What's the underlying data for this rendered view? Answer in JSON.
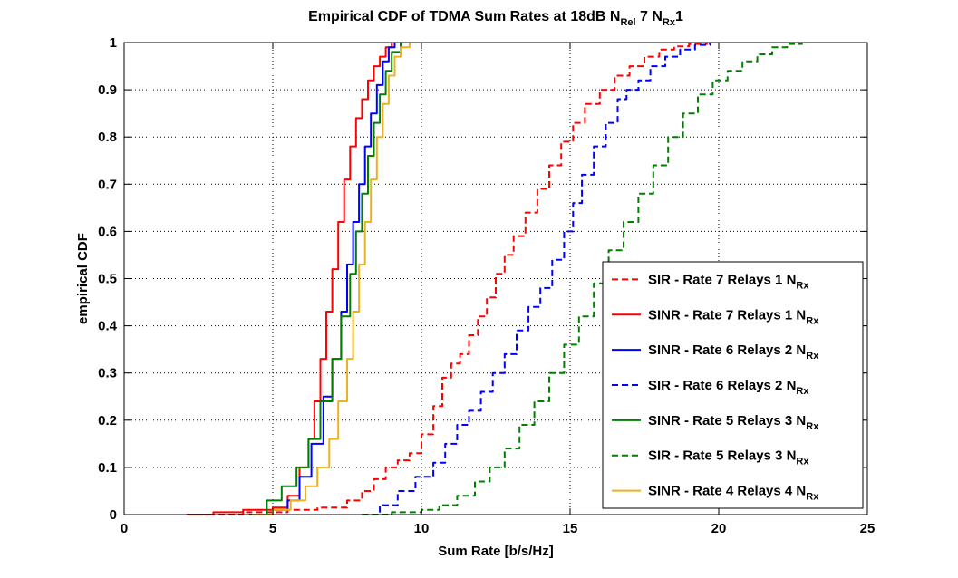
{
  "chart_data": {
    "type": "line",
    "title": {
      "main": "Empirical CDF of TDMA Sum Rates at 18dB N",
      "sub1": "Rel",
      "mid": " 7 N",
      "sub2": "Rx",
      "end": "1"
    },
    "xlabel": "Sum Rate [b/s/Hz]",
    "ylabel": "empirical CDF",
    "xlim": [
      0,
      25
    ],
    "ylim": [
      0,
      1
    ],
    "xticks": [
      "0",
      "5",
      "10",
      "15",
      "20",
      "25"
    ],
    "yticks": [
      "0",
      "0.1",
      "0.2",
      "0.3",
      "0.4",
      "0.5",
      "0.6",
      "0.7",
      "0.8",
      "0.9",
      "1"
    ],
    "grid": true,
    "legend_position": "lower-right",
    "series": [
      {
        "name": "SIR - Rate 7 Relays 1 N",
        "name_sub": "Rx",
        "color": "#ff0000",
        "dash": true,
        "x": [
          2.5,
          4.0,
          5.5,
          6.5,
          7.5,
          8.0,
          8.4,
          8.8,
          9.2,
          9.6,
          10.0,
          10.4,
          10.7,
          11.0,
          11.3,
          11.6,
          11.9,
          12.2,
          12.5,
          12.8,
          13.1,
          13.5,
          13.9,
          14.3,
          14.7,
          15.1,
          15.5,
          16.0,
          16.5,
          17.0,
          17.5,
          18.0,
          18.5,
          19.0,
          19.6
        ],
        "y": [
          0.0,
          0.005,
          0.01,
          0.015,
          0.03,
          0.05,
          0.075,
          0.1,
          0.115,
          0.13,
          0.17,
          0.23,
          0.29,
          0.32,
          0.34,
          0.38,
          0.42,
          0.46,
          0.51,
          0.55,
          0.59,
          0.64,
          0.69,
          0.74,
          0.79,
          0.83,
          0.87,
          0.9,
          0.93,
          0.95,
          0.97,
          0.985,
          0.992,
          0.997,
          1.0
        ]
      },
      {
        "name": "SINR - Rate 7 Relays 1 N",
        "name_sub": "Rx",
        "color": "#ff0000",
        "dash": false,
        "x": [
          2.1,
          3.0,
          4.0,
          5.0,
          5.5,
          5.9,
          6.2,
          6.4,
          6.6,
          6.8,
          7.0,
          7.2,
          7.4,
          7.6,
          7.8,
          8.0,
          8.2,
          8.4,
          8.6,
          8.8,
          9.0
        ],
        "y": [
          0.0,
          0.005,
          0.01,
          0.015,
          0.04,
          0.1,
          0.16,
          0.24,
          0.33,
          0.43,
          0.52,
          0.62,
          0.71,
          0.78,
          0.84,
          0.88,
          0.92,
          0.95,
          0.97,
          0.99,
          1.0
        ]
      },
      {
        "name": "SINR - Rate 6 Relays 2 N",
        "name_sub": "Rx",
        "color": "#0000ff",
        "dash": false,
        "x": [
          4.2,
          5.0,
          5.5,
          5.9,
          6.3,
          6.7,
          7.0,
          7.3,
          7.5,
          7.7,
          7.9,
          8.1,
          8.3,
          8.5,
          8.7,
          8.9,
          9.1
        ],
        "y": [
          0.0,
          0.01,
          0.03,
          0.08,
          0.15,
          0.25,
          0.33,
          0.43,
          0.53,
          0.62,
          0.7,
          0.78,
          0.85,
          0.91,
          0.96,
          0.99,
          1.0
        ]
      },
      {
        "name": "SIR - Rate 6 Relays 2 N",
        "name_sub": "Rx",
        "color": "#0000ff",
        "dash": true,
        "x": [
          8.0,
          8.6,
          9.2,
          9.8,
          10.4,
          10.8,
          11.2,
          11.6,
          12.0,
          12.4,
          12.8,
          13.2,
          13.6,
          14.0,
          14.4,
          14.8,
          15.1,
          15.4,
          15.8,
          16.2,
          16.6,
          16.9,
          17.3,
          17.7,
          18.2,
          18.7,
          19.2,
          19.7
        ],
        "y": [
          0.0,
          0.02,
          0.05,
          0.08,
          0.11,
          0.15,
          0.19,
          0.22,
          0.26,
          0.3,
          0.34,
          0.39,
          0.44,
          0.48,
          0.54,
          0.6,
          0.66,
          0.72,
          0.78,
          0.83,
          0.88,
          0.9,
          0.92,
          0.95,
          0.97,
          0.985,
          0.995,
          1.0
        ]
      },
      {
        "name": "SINR - Rate 5 Relays 3 N",
        "name_sub": "Rx",
        "color": "#007f00",
        "dash": false,
        "x": [
          4.2,
          4.8,
          5.3,
          5.8,
          6.2,
          6.6,
          7.0,
          7.3,
          7.6,
          7.8,
          8.0,
          8.2,
          8.4,
          8.6,
          8.8,
          9.0,
          9.3
        ],
        "y": [
          0.0,
          0.03,
          0.06,
          0.1,
          0.16,
          0.24,
          0.33,
          0.42,
          0.51,
          0.6,
          0.68,
          0.76,
          0.83,
          0.89,
          0.94,
          0.98,
          1.0
        ]
      },
      {
        "name": "SIR - Rate 5 Relays 3 N",
        "name_sub": "Rx",
        "color": "#007f00",
        "dash": true,
        "x": [
          8.0,
          9.0,
          10.0,
          10.6,
          11.2,
          11.8,
          12.3,
          12.8,
          13.3,
          13.8,
          14.3,
          14.8,
          15.3,
          15.8,
          16.3,
          16.8,
          17.3,
          17.8,
          18.3,
          18.8,
          19.3,
          19.8,
          20.3,
          20.8,
          21.3,
          21.8,
          22.3,
          22.8
        ],
        "y": [
          0.0,
          0.005,
          0.01,
          0.02,
          0.04,
          0.07,
          0.1,
          0.14,
          0.19,
          0.24,
          0.3,
          0.36,
          0.42,
          0.49,
          0.56,
          0.62,
          0.68,
          0.74,
          0.8,
          0.85,
          0.89,
          0.92,
          0.94,
          0.96,
          0.975,
          0.99,
          0.997,
          1.0
        ]
      },
      {
        "name": "SINR - Rate 4 Relays 4 N",
        "name_sub": "Rx",
        "color": "#edb120",
        "dash": false,
        "x": [
          4.3,
          5.0,
          5.6,
          6.1,
          6.5,
          6.9,
          7.2,
          7.5,
          7.7,
          7.9,
          8.1,
          8.3,
          8.5,
          8.7,
          8.9,
          9.1,
          9.3,
          9.6
        ],
        "y": [
          0.0,
          0.01,
          0.03,
          0.06,
          0.1,
          0.16,
          0.24,
          0.33,
          0.43,
          0.53,
          0.62,
          0.71,
          0.8,
          0.87,
          0.93,
          0.97,
          0.99,
          1.0
        ]
      }
    ]
  }
}
